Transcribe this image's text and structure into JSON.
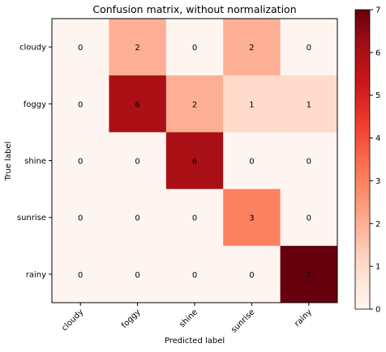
{
  "chart_data": {
    "type": "heatmap",
    "title": "Confusion matrix, without normalization",
    "xlabel": "Predicted label",
    "ylabel": "True label",
    "x_categories": [
      "cloudy",
      "foggy",
      "shine",
      "sunrise",
      "rainy"
    ],
    "y_categories": [
      "cloudy",
      "foggy",
      "shine",
      "sunrise",
      "rainy"
    ],
    "values": [
      [
        0,
        2,
        0,
        2,
        0
      ],
      [
        0,
        6,
        2,
        1,
        1
      ],
      [
        0,
        0,
        6,
        0,
        0
      ],
      [
        0,
        0,
        0,
        3,
        0
      ],
      [
        0,
        0,
        0,
        0,
        7
      ]
    ],
    "colorbar": {
      "min": 0,
      "max": 7,
      "ticks": [
        "0",
        "1",
        "2",
        "3",
        "4",
        "5",
        "6",
        "7"
      ]
    },
    "colormap": "Reds",
    "grid": false
  }
}
